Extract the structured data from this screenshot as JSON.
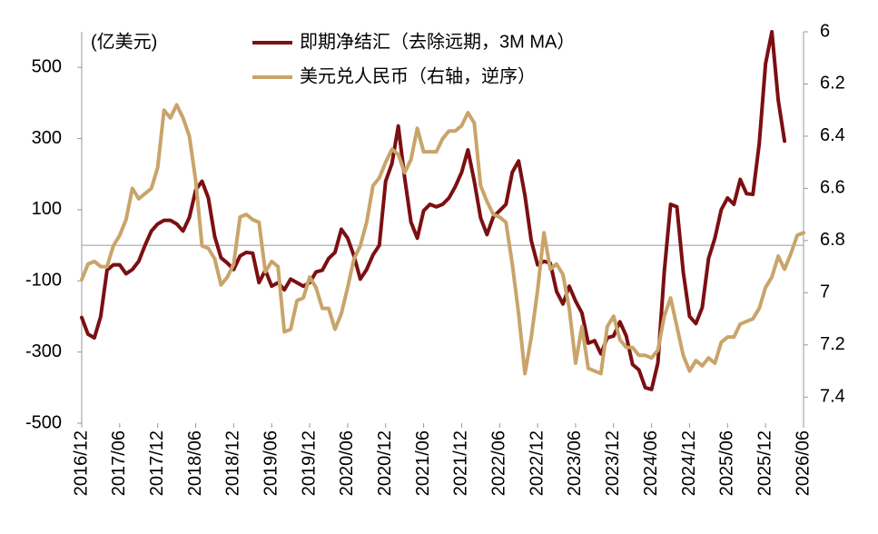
{
  "chart_data": {
    "type": "line",
    "ylabel": "(亿美元)",
    "categories": [
      "2016/12",
      null,
      null,
      null,
      null,
      null,
      "2017/06",
      null,
      null,
      null,
      null,
      null,
      "2017/12",
      null,
      null,
      null,
      null,
      null,
      "2018/06",
      null,
      null,
      null,
      null,
      null,
      "2018/12",
      null,
      null,
      null,
      null,
      null,
      "2019/06",
      null,
      null,
      null,
      null,
      null,
      "2019/12",
      null,
      null,
      null,
      null,
      null,
      "2020/06",
      null,
      null,
      null,
      null,
      null,
      "2020/12",
      null,
      null,
      null,
      null,
      null,
      "2021/06",
      null,
      null,
      null,
      null,
      null,
      "2021/12",
      null,
      null,
      null,
      null,
      null,
      "2022/06",
      null,
      null,
      null,
      null,
      null,
      "2022/12",
      null,
      null,
      null,
      null,
      null,
      "2023/06",
      null,
      null,
      null,
      null,
      null,
      "2023/12",
      null,
      null,
      null,
      null,
      null,
      "2024/06",
      null,
      null,
      null,
      null,
      null,
      "2024/12",
      null,
      null,
      null,
      null,
      null,
      "2025/06",
      null,
      null,
      null,
      null,
      null,
      "2025/12",
      null,
      null,
      null,
      null,
      null,
      "2026/06"
    ],
    "series": [
      {
        "name": "即期净结汇（去除远期，3M MA）",
        "color": "#7b0f12",
        "values": [
          -203,
          -250,
          -260,
          -200,
          -70,
          -55,
          -55,
          -80,
          -68,
          -45,
          0,
          40,
          60,
          70,
          70,
          60,
          40,
          78,
          155,
          180,
          133,
          25,
          -35,
          -50,
          -68,
          -30,
          -20,
          -22,
          -105,
          -70,
          -115,
          -105,
          -125,
          -95,
          -105,
          -115,
          -105,
          -75,
          -70,
          -37,
          -20,
          45,
          20,
          -30,
          -95,
          -68,
          -27,
          0,
          180,
          230,
          335,
          190,
          65,
          20,
          97,
          115,
          108,
          115,
          133,
          165,
          205,
          268,
          180,
          77,
          30,
          80,
          97,
          115,
          205,
          237,
          140,
          13,
          -55,
          -45,
          -50,
          -130,
          -165,
          -115,
          -157,
          -190,
          -275,
          -268,
          -305,
          -260,
          -255,
          -215,
          -255,
          -335,
          -350,
          -400,
          -405,
          -330,
          -75,
          115,
          108,
          -75,
          -200,
          -220,
          -175,
          -37,
          20,
          100,
          133,
          115,
          185,
          145,
          143,
          285,
          510,
          600,
          408,
          293,
          null,
          null,
          null
        ]
      },
      {
        "name": "美元兑人民币（右轴，逆序）",
        "color": "#c9a46a",
        "axis": "y2",
        "values": [
          6.95,
          6.89,
          6.88,
          6.9,
          6.9,
          6.82,
          6.78,
          6.72,
          6.6,
          6.64,
          6.62,
          6.6,
          6.52,
          6.3,
          6.33,
          6.28,
          6.33,
          6.4,
          6.57,
          6.82,
          6.83,
          6.87,
          6.97,
          6.94,
          6.89,
          6.71,
          6.7,
          6.72,
          6.73,
          6.92,
          6.88,
          6.9,
          7.15,
          7.14,
          7.03,
          7.02,
          6.94,
          6.98,
          7.06,
          7.06,
          7.14,
          7.08,
          6.98,
          6.87,
          6.82,
          6.73,
          6.59,
          6.56,
          6.5,
          6.45,
          6.47,
          6.54,
          6.49,
          6.37,
          6.46,
          6.46,
          6.46,
          6.41,
          6.38,
          6.38,
          6.36,
          6.31,
          6.35,
          6.59,
          6.65,
          6.7,
          6.71,
          6.73,
          6.89,
          7.08,
          7.31,
          7.17,
          6.99,
          6.77,
          6.91,
          6.89,
          6.93,
          7.06,
          7.27,
          7.13,
          7.29,
          7.3,
          7.31,
          7.13,
          7.09,
          7.18,
          7.21,
          7.21,
          7.24,
          7.24,
          7.25,
          7.22,
          7.09,
          7.02,
          7.13,
          7.24,
          7.3,
          7.26,
          7.28,
          7.25,
          7.27,
          7.19,
          7.17,
          7.17,
          7.12,
          7.11,
          7.1,
          7.06,
          6.98,
          6.94,
          6.86,
          6.91,
          6.85,
          6.78,
          6.77
        ]
      }
    ],
    "ylim": [
      -500,
      600
    ],
    "yticks": [
      -500,
      -300,
      -100,
      100,
      300,
      500
    ],
    "y2lim": [
      6,
      7.5
    ],
    "y2ticks": [
      6,
      6.2,
      6.4,
      6.6,
      6.8,
      7,
      7.2,
      7.4
    ],
    "y2_inverted": true,
    "grid": false
  }
}
